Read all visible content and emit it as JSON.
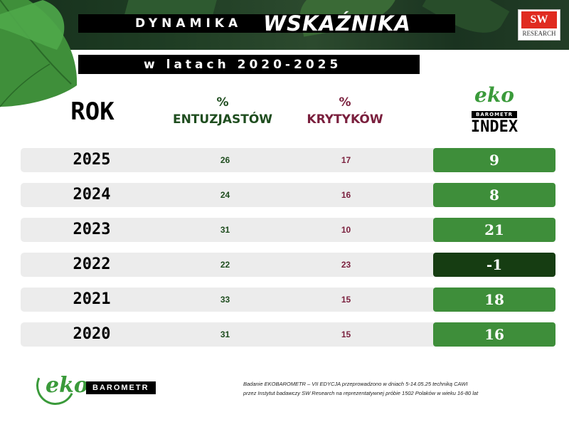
{
  "header": {
    "title_a": "DYNAMIKA",
    "title_b": "WSKAŹNIKA",
    "subtitle": "w latach 2020-2025"
  },
  "sw_logo": {
    "mark": "SW",
    "name": "RESEARCH"
  },
  "columns": {
    "rok": "ROK",
    "entuzjastow_pct": "%",
    "entuzjastow": "ENTUZJASTÓW",
    "krytykow_pct": "%",
    "krytykow": "KRYTYKÓW",
    "eko": "eko",
    "barometr": "BAROMETR",
    "index": "INDEX"
  },
  "rows": [
    {
      "year": "2025",
      "entuzjasci": "26",
      "krytycy": "17",
      "index": "9"
    },
    {
      "year": "2024",
      "entuzjasci": "24",
      "krytycy": "16",
      "index": "8"
    },
    {
      "year": "2023",
      "entuzjasci": "31",
      "krytycy": "10",
      "index": "21"
    },
    {
      "year": "2022",
      "entuzjasci": "22",
      "krytycy": "23",
      "index": "-1"
    },
    {
      "year": "2021",
      "entuzjasci": "33",
      "krytycy": "15",
      "index": "18"
    },
    {
      "year": "2020",
      "entuzjasci": "31",
      "krytycy": "15",
      "index": "16"
    }
  ],
  "colors": {
    "positive_index": "#3e8e3a",
    "negative_index": "#163d12",
    "entuzjasci": "#1f4d1f",
    "krytycy": "#7a1f3d"
  },
  "footer": {
    "logo_eko": "eko",
    "logo_barometr": "BAROMETR",
    "note_line1": "Badanie EKOBAROMETR – VII EDYCJA przeprowadzono w dniach 5-14.05.25 techniką CAWI",
    "note_line2": "przez Instytut badawczy SW Research na reprezentatywnej próbie 1502 Polaków w wieku 16-80 lat"
  }
}
